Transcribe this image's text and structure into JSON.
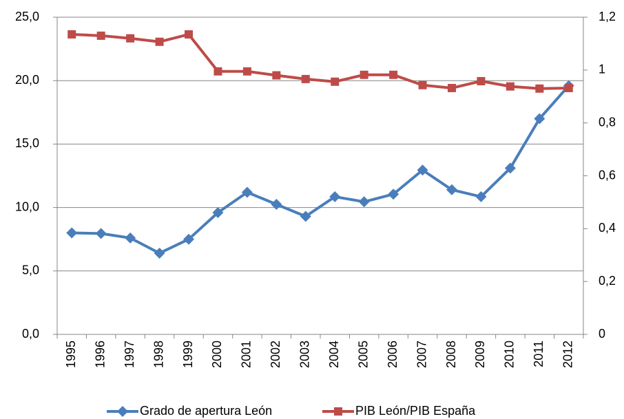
{
  "chart_data": {
    "type": "line",
    "categories": [
      "1995",
      "1996",
      "1997",
      "1998",
      "1999",
      "2000",
      "2001",
      "2002",
      "2003",
      "2004",
      "2005",
      "2006",
      "2007",
      "2008",
      "2009",
      "2010",
      "2011",
      "2012"
    ],
    "series": [
      {
        "name": "Grado de apertura León",
        "color": "#4a7ebb",
        "marker": "diamond",
        "axis": "y",
        "values": [
          8.0,
          7.95,
          7.6,
          6.4,
          7.5,
          9.6,
          11.2,
          10.25,
          9.3,
          10.85,
          10.45,
          11.05,
          12.95,
          11.4,
          10.85,
          13.1,
          17.0,
          19.6
        ]
      },
      {
        "name": "PIB León/PIB España",
        "color": "#be4b48",
        "marker": "square",
        "axis": "y2",
        "values": [
          1.135,
          1.13,
          1.12,
          1.107,
          1.135,
          0.995,
          0.995,
          0.98,
          0.966,
          0.956,
          0.982,
          0.982,
          0.943,
          0.932,
          0.958,
          0.938,
          0.93,
          0.932
        ]
      }
    ],
    "ylim": [
      0,
      25
    ],
    "yticks": [
      {
        "value": 0,
        "label": "0,0"
      },
      {
        "value": 5,
        "label": "5,0"
      },
      {
        "value": 10,
        "label": "10,0"
      },
      {
        "value": 15,
        "label": "15,0"
      },
      {
        "value": 20,
        "label": "20,0"
      },
      {
        "value": 25,
        "label": "25,0"
      }
    ],
    "y2lim": [
      0,
      1.2
    ],
    "y2ticks": [
      0,
      {
        "value": 0.2,
        "label": "0,2"
      },
      {
        "value": 0.4,
        "label": "0,4"
      },
      {
        "value": 0.6,
        "label": "0,6"
      },
      {
        "value": 0.8,
        "label": "0,8"
      },
      1,
      {
        "value": 1.2,
        "label": "1,2"
      }
    ],
    "grid": true,
    "legend": "bottom"
  }
}
